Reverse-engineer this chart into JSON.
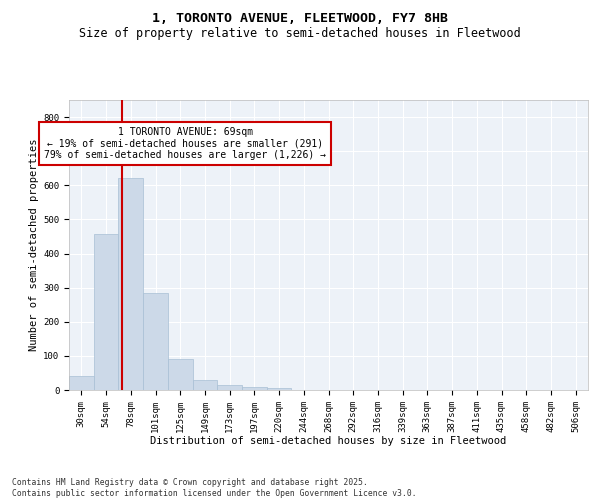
{
  "title_line1": "1, TORONTO AVENUE, FLEETWOOD, FY7 8HB",
  "title_line2": "Size of property relative to semi-detached houses in Fleetwood",
  "xlabel": "Distribution of semi-detached houses by size in Fleetwood",
  "ylabel": "Number of semi-detached properties",
  "categories": [
    "30sqm",
    "54sqm",
    "78sqm",
    "101sqm",
    "125sqm",
    "149sqm",
    "173sqm",
    "197sqm",
    "220sqm",
    "244sqm",
    "268sqm",
    "292sqm",
    "316sqm",
    "339sqm",
    "363sqm",
    "387sqm",
    "411sqm",
    "435sqm",
    "458sqm",
    "482sqm",
    "506sqm"
  ],
  "values": [
    42,
    457,
    620,
    285,
    92,
    30,
    15,
    8,
    5,
    0,
    0,
    0,
    0,
    0,
    0,
    0,
    0,
    0,
    0,
    0,
    0
  ],
  "bar_color": "#ccd9e8",
  "bar_edge_color": "#a8bfd4",
  "vline_color": "#cc0000",
  "annotation_text": "1 TORONTO AVENUE: 69sqm\n← 19% of semi-detached houses are smaller (291)\n79% of semi-detached houses are larger (1,226) →",
  "annotation_box_color": "#ffffff",
  "annotation_box_edge": "#cc0000",
  "ylim": [
    0,
    850
  ],
  "yticks": [
    0,
    100,
    200,
    300,
    400,
    500,
    600,
    700,
    800
  ],
  "footer_line1": "Contains HM Land Registry data © Crown copyright and database right 2025.",
  "footer_line2": "Contains public sector information licensed under the Open Government Licence v3.0.",
  "background_color": "#edf2f8",
  "grid_color": "#ffffff",
  "title_fontsize": 9.5,
  "subtitle_fontsize": 8.5,
  "axis_label_fontsize": 7.5,
  "tick_fontsize": 6.5,
  "annotation_fontsize": 7,
  "footer_fontsize": 5.8
}
